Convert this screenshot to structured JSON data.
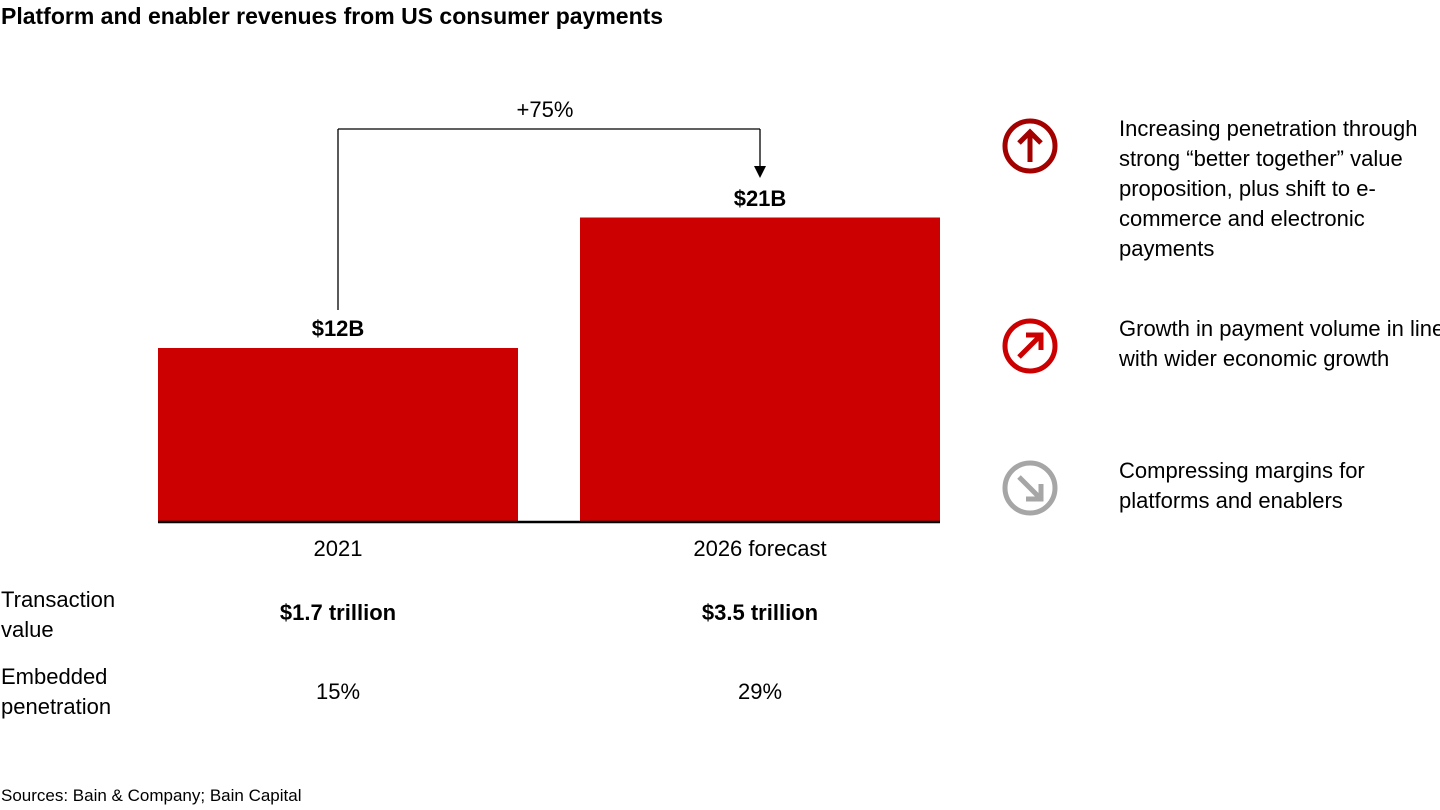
{
  "title": "Platform and enabler revenues from US consumer payments",
  "chart_data": {
    "type": "bar",
    "title": "Platform and enabler revenues from US consumer payments",
    "categories": [
      "2021",
      "2026 forecast"
    ],
    "values": [
      12,
      21
    ],
    "data_labels": [
      "$12B",
      "$21B"
    ],
    "unit": "$B",
    "bar_color": "#cc0000",
    "growth_annotation": "+75%",
    "grid": false,
    "legend": "none"
  },
  "rows": [
    {
      "label": "Transaction value",
      "values": [
        "$1.7 trillion",
        "$3.5 trillion"
      ]
    },
    {
      "label": "Embedded penetration",
      "values": [
        "15%",
        "29%"
      ]
    }
  ],
  "drivers": [
    {
      "icon": "arrow-up-circle-icon",
      "color": "#a30000",
      "text": "Increasing penetration through strong “better together” value proposition, plus shift to e-commerce and electronic payments"
    },
    {
      "icon": "arrow-up-right-circle-icon",
      "color": "#cc0000",
      "text": "Growth in payment volume in line with wider economic growth"
    },
    {
      "icon": "arrow-down-right-circle-icon",
      "color": "#a6a6a6",
      "text": "Compressing margins for platforms and enablers"
    }
  ],
  "source": "Sources: Bain & Company; Bain Capital"
}
